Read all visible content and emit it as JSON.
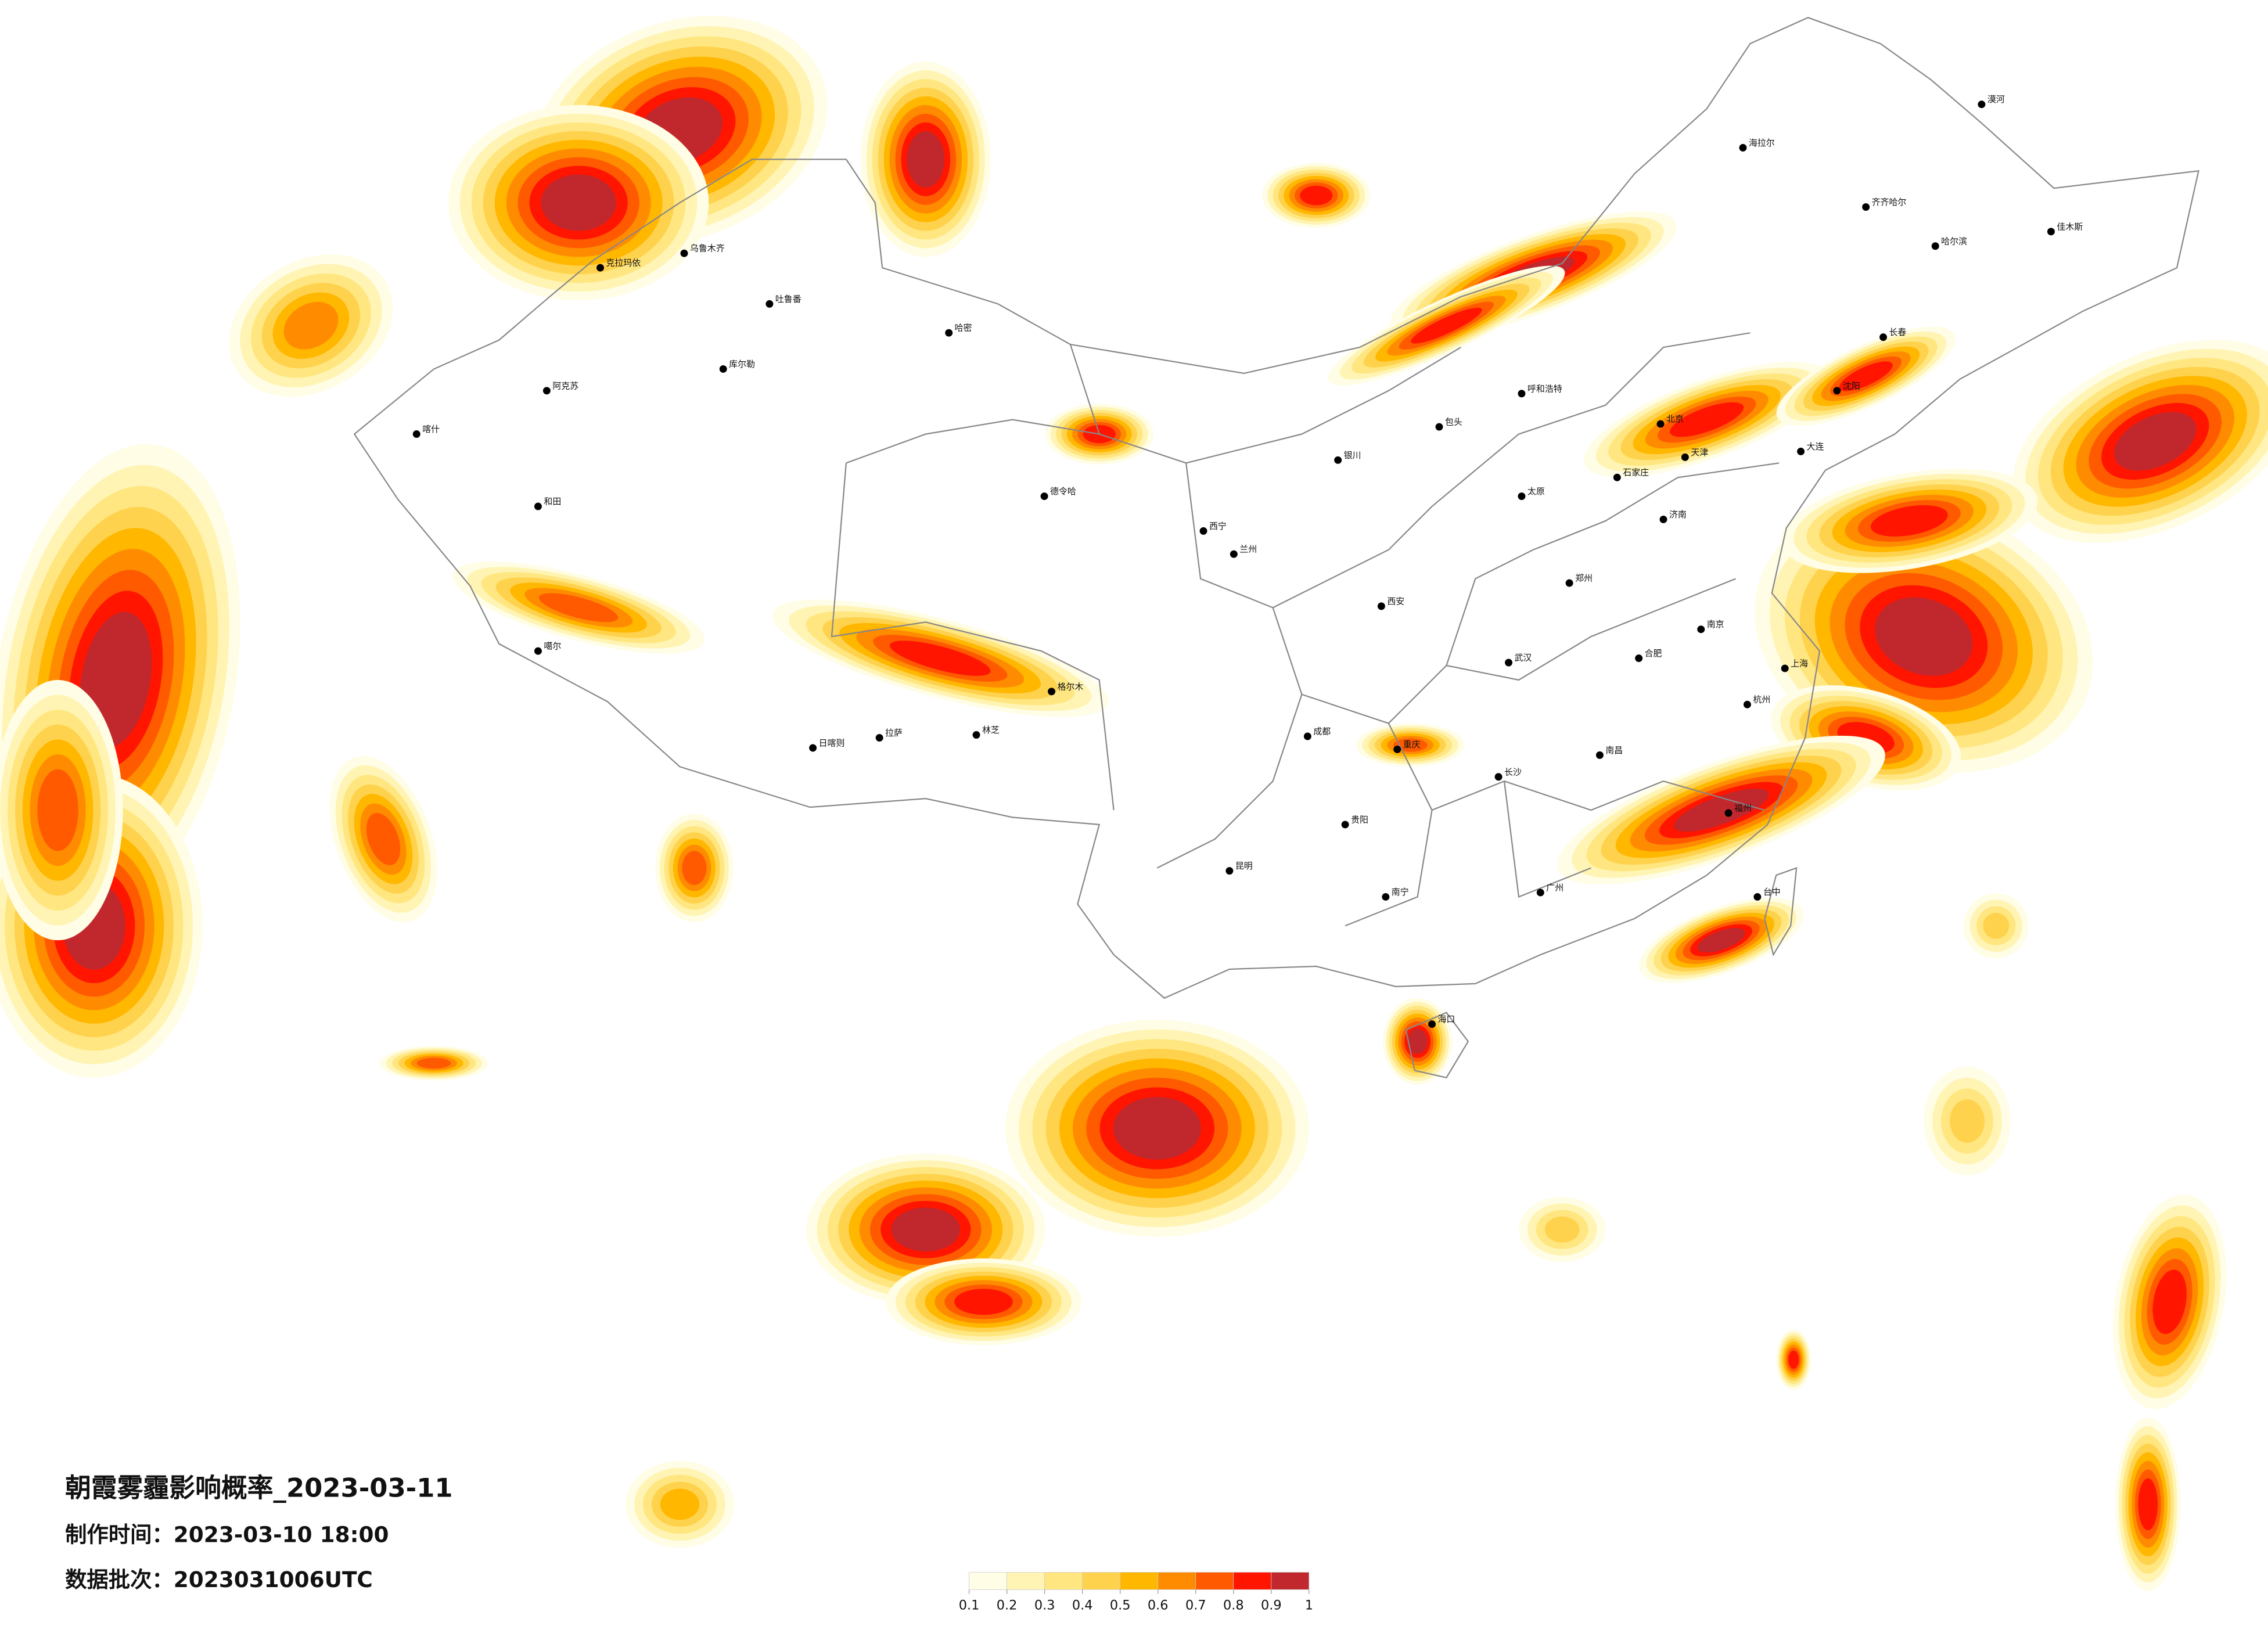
{
  "header": {
    "title": "朝霞雾霾影响概率_2023-03-11",
    "made_time": "制作时间：2023-03-10 18:00",
    "batch": "数据批次：2023031006UTC"
  },
  "legend": {
    "colors": [
      "#fffde6",
      "#fff4b3",
      "#ffe680",
      "#ffd24d",
      "#ffb700",
      "#ff8c00",
      "#ff5a00",
      "#ff1500",
      "#c0282e"
    ],
    "ticks": [
      0.1,
      0.2,
      0.3,
      0.4,
      0.5,
      0.6,
      0.7,
      0.8,
      0.9,
      1
    ]
  },
  "cities": [
    "克拉玛依",
    "乌鲁木齐",
    "吐鲁番",
    "哈密",
    "库尔勒",
    "阿克苏",
    "喀什",
    "和田",
    "噶尔",
    "日喀则",
    "拉萨",
    "林芝",
    "格尔木",
    "德令哈",
    "西宁",
    "兰州",
    "银川",
    "呼和浩特",
    "包头",
    "北京",
    "天津",
    "石家庄",
    "太原",
    "济南",
    "郑州",
    "西安",
    "成都",
    "重庆",
    "武汉",
    "长沙",
    "南昌",
    "合肥",
    "南京",
    "上海",
    "杭州",
    "福州",
    "广州",
    "南宁",
    "贵阳",
    "昆明",
    "海口",
    "台中",
    "沈阳",
    "长春",
    "哈尔滨",
    "齐齐哈尔",
    "海拉尔",
    "漠河",
    "佳木斯",
    "大连"
  ]
}
